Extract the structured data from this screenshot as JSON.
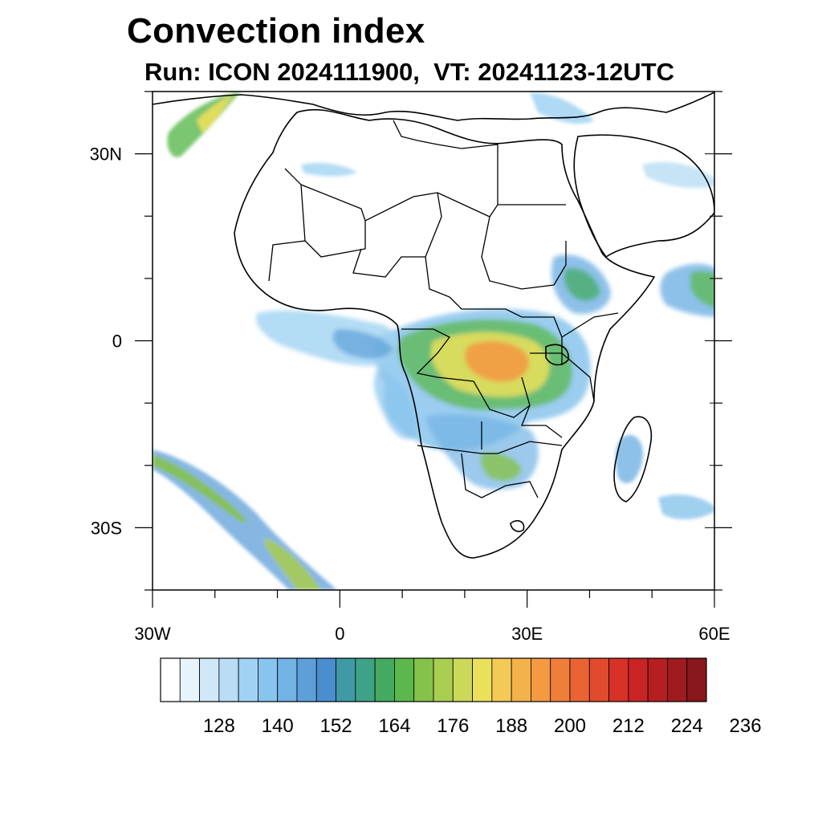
{
  "title": "Convection index",
  "subtitle": "Run: ICON 2024111900,  VT: 20241123-12UTC",
  "map": {
    "lon_range": [
      -30,
      60
    ],
    "lat_range": [
      -40,
      40
    ],
    "lon_ticks": [
      {
        "value": -30,
        "label": "30W"
      },
      {
        "value": 0,
        "label": "0"
      },
      {
        "value": 30,
        "label": "30E"
      },
      {
        "value": 60,
        "label": "60E"
      }
    ],
    "lat_ticks": [
      {
        "value": 30,
        "label": "30N"
      },
      {
        "value": 0,
        "label": "0"
      },
      {
        "value": -30,
        "label": "30S"
      }
    ]
  },
  "colorbar": {
    "colors": [
      "#ffffff",
      "#e8f4fb",
      "#cfe8f7",
      "#b8ddf4",
      "#a0d3f3",
      "#88c4ec",
      "#72b2e4",
      "#5d9fd8",
      "#4a8ecf",
      "#3f9aa6",
      "#3ea386",
      "#44aa62",
      "#5bb84c",
      "#86c24a",
      "#a9cd4f",
      "#ccd85a",
      "#ebe05a",
      "#f3ca55",
      "#f5b24c",
      "#f39a43",
      "#ef7e3a",
      "#ea6433",
      "#e24a2d",
      "#d83128",
      "#c92424",
      "#b61f21",
      "#a01b1e",
      "#8a171b"
    ],
    "labels": [
      "128",
      "140",
      "152",
      "164",
      "176",
      "188",
      "200",
      "212",
      "224",
      "236"
    ]
  }
}
